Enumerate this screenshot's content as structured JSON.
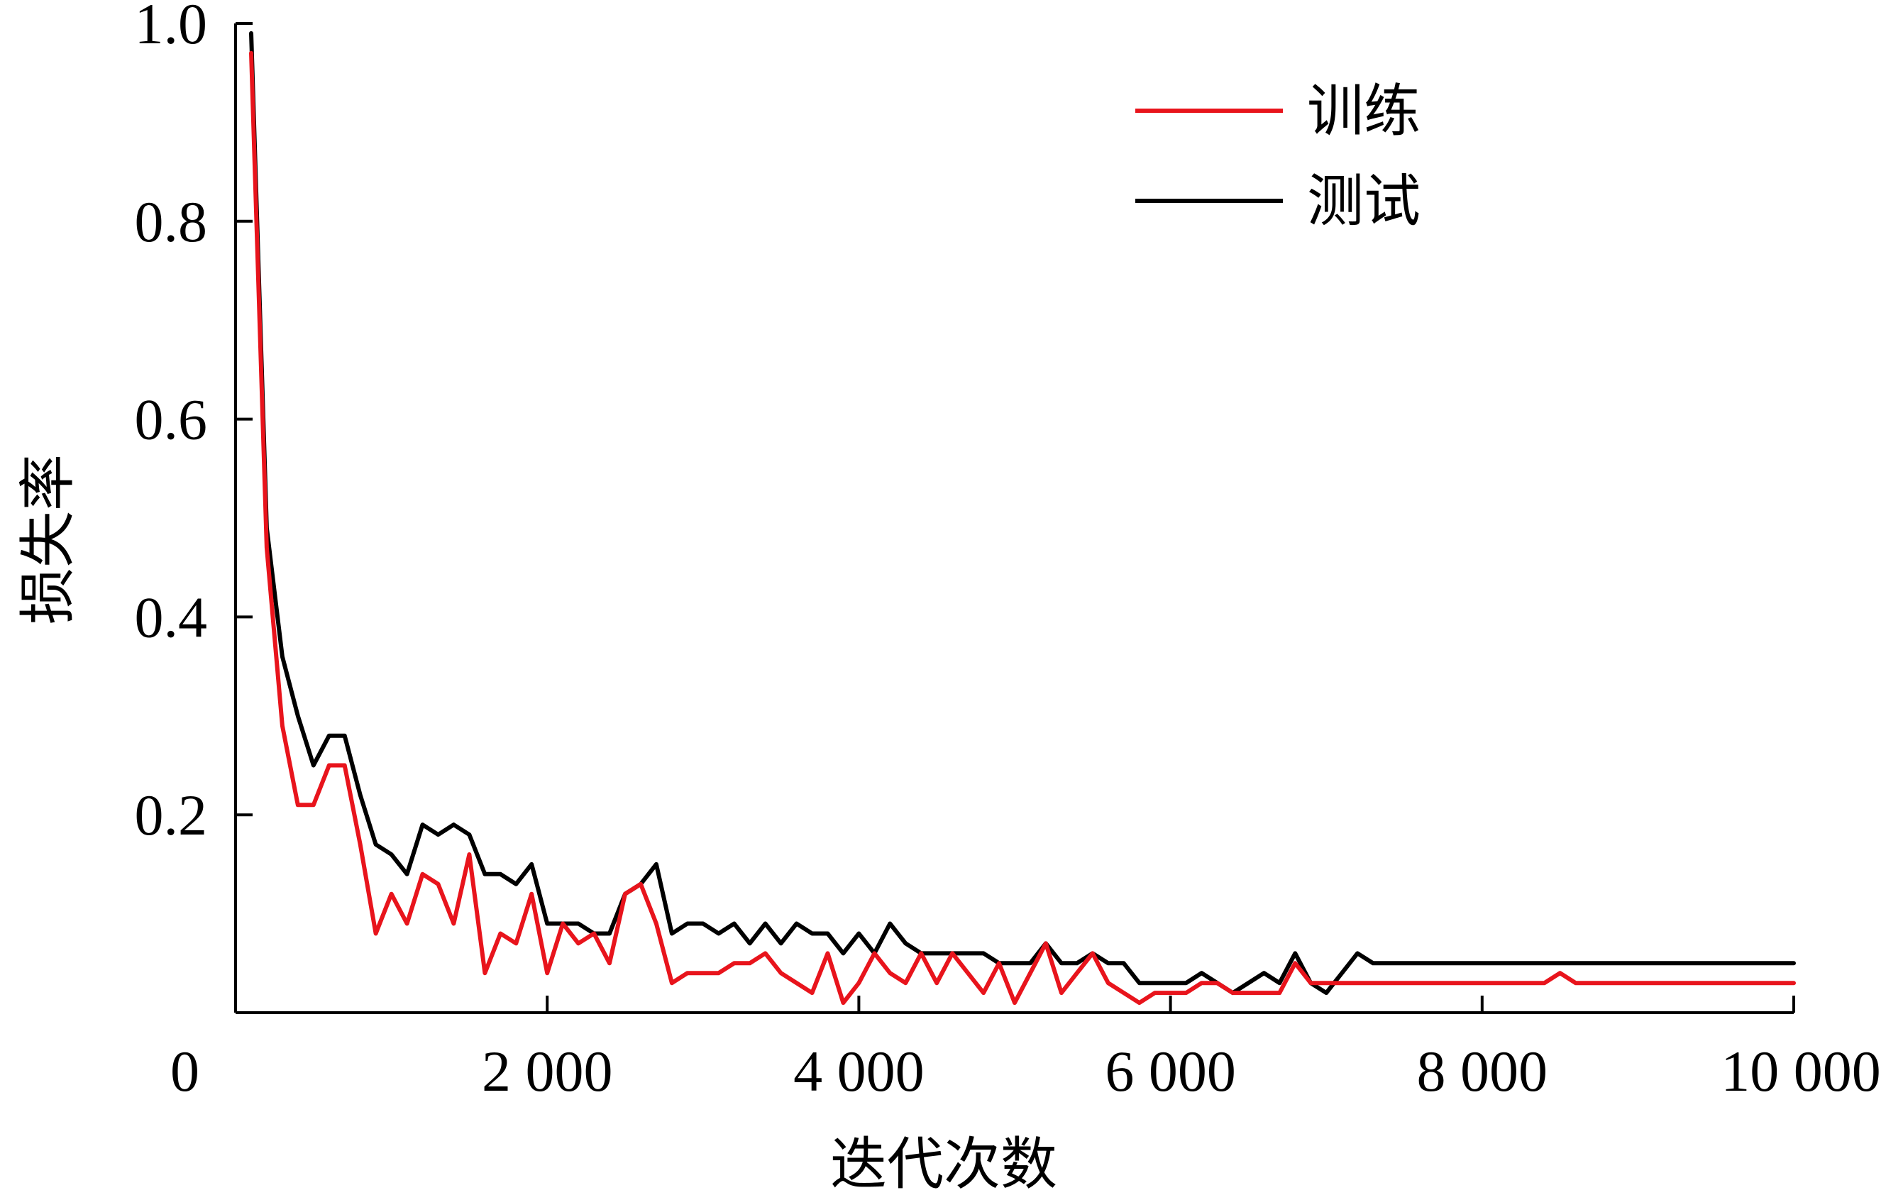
{
  "chart_data": {
    "type": "line",
    "title": "",
    "xlabel": "迭代次数",
    "ylabel": "损失率",
    "xlim": [
      0,
      10000
    ],
    "ylim": [
      0,
      1.0
    ],
    "xticks": [
      0,
      2000,
      4000,
      6000,
      8000,
      10000
    ],
    "xtick_labels": [
      "0",
      "2 000",
      "4 000",
      "6 000",
      "8 000",
      "10 000"
    ],
    "yticks": [
      0.2,
      0.4,
      0.6,
      0.8,
      1.0
    ],
    "ytick_labels": [
      "0.2",
      "0.4",
      "0.6",
      "0.8",
      "1.0"
    ],
    "grid": false,
    "legend_position": "top-right",
    "colors": {
      "train": "#e8141c",
      "test": "#000000"
    },
    "series": [
      {
        "name": "训练",
        "color": "#e8141c",
        "x": [
          100,
          200,
          300,
          400,
          500,
          600,
          700,
          800,
          900,
          1000,
          1100,
          1200,
          1300,
          1400,
          1500,
          1600,
          1700,
          1800,
          1900,
          2000,
          2100,
          2200,
          2300,
          2400,
          2500,
          2600,
          2700,
          2800,
          2900,
          3000,
          3100,
          3200,
          3300,
          3400,
          3500,
          3600,
          3700,
          3800,
          3900,
          4000,
          4100,
          4200,
          4300,
          4400,
          4500,
          4600,
          4700,
          4800,
          4900,
          5000,
          5100,
          5200,
          5300,
          5400,
          5500,
          5600,
          5700,
          5800,
          5900,
          6000,
          6100,
          6200,
          6300,
          6400,
          6500,
          6600,
          6700,
          6800,
          6900,
          7000,
          7100,
          7200,
          7300,
          7400,
          7500,
          7600,
          7700,
          7800,
          7900,
          8000,
          8100,
          8200,
          8300,
          8400,
          8500,
          8600,
          8700,
          8800,
          8900,
          9000,
          9100,
          9200,
          9300,
          9400,
          9500,
          9600,
          9700,
          9800,
          9900,
          10000
        ],
        "values": [
          0.97,
          0.47,
          0.29,
          0.21,
          0.21,
          0.25,
          0.25,
          0.17,
          0.08,
          0.12,
          0.09,
          0.14,
          0.13,
          0.09,
          0.16,
          0.04,
          0.08,
          0.07,
          0.12,
          0.04,
          0.09,
          0.07,
          0.08,
          0.05,
          0.12,
          0.13,
          0.09,
          0.03,
          0.04,
          0.04,
          0.04,
          0.05,
          0.05,
          0.06,
          0.04,
          0.03,
          0.02,
          0.06,
          0.01,
          0.03,
          0.06,
          0.04,
          0.03,
          0.06,
          0.03,
          0.06,
          0.04,
          0.02,
          0.05,
          0.01,
          0.04,
          0.07,
          0.02,
          0.04,
          0.06,
          0.03,
          0.02,
          0.01,
          0.02,
          0.02,
          0.02,
          0.03,
          0.03,
          0.02,
          0.02,
          0.02,
          0.02,
          0.05,
          0.03,
          0.03,
          0.03,
          0.03,
          0.03,
          0.03,
          0.03,
          0.03,
          0.03,
          0.03,
          0.03,
          0.03,
          0.03,
          0.03,
          0.03,
          0.03,
          0.04,
          0.03,
          0.03,
          0.03,
          0.03,
          0.03,
          0.03,
          0.03,
          0.03,
          0.03,
          0.03,
          0.03,
          0.03,
          0.03,
          0.03,
          0.03
        ]
      },
      {
        "name": "测试",
        "color": "#000000",
        "x": [
          100,
          200,
          300,
          400,
          500,
          600,
          700,
          800,
          900,
          1000,
          1100,
          1200,
          1300,
          1400,
          1500,
          1600,
          1700,
          1800,
          1900,
          2000,
          2100,
          2200,
          2300,
          2400,
          2500,
          2600,
          2700,
          2800,
          2900,
          3000,
          3100,
          3200,
          3300,
          3400,
          3500,
          3600,
          3700,
          3800,
          3900,
          4000,
          4100,
          4200,
          4300,
          4400,
          4500,
          4600,
          4700,
          4800,
          4900,
          5000,
          5100,
          5200,
          5300,
          5400,
          5500,
          5600,
          5700,
          5800,
          5900,
          6000,
          6100,
          6200,
          6300,
          6400,
          6500,
          6600,
          6700,
          6800,
          6900,
          7000,
          7100,
          7200,
          7300,
          7400,
          7500,
          7600,
          7700,
          7800,
          7900,
          8000,
          8100,
          8200,
          8300,
          8400,
          8500,
          8600,
          8700,
          8800,
          8900,
          9000,
          9100,
          9200,
          9300,
          9400,
          9500,
          9600,
          9700,
          9800,
          9900,
          10000
        ],
        "values": [
          0.99,
          0.49,
          0.36,
          0.3,
          0.25,
          0.28,
          0.28,
          0.22,
          0.17,
          0.16,
          0.14,
          0.19,
          0.18,
          0.19,
          0.18,
          0.14,
          0.14,
          0.13,
          0.15,
          0.09,
          0.09,
          0.09,
          0.08,
          0.08,
          0.12,
          0.13,
          0.15,
          0.08,
          0.09,
          0.09,
          0.08,
          0.09,
          0.07,
          0.09,
          0.07,
          0.09,
          0.08,
          0.08,
          0.06,
          0.08,
          0.06,
          0.09,
          0.07,
          0.06,
          0.06,
          0.06,
          0.06,
          0.06,
          0.05,
          0.05,
          0.05,
          0.07,
          0.05,
          0.05,
          0.06,
          0.05,
          0.05,
          0.03,
          0.03,
          0.03,
          0.03,
          0.04,
          0.03,
          0.02,
          0.03,
          0.04,
          0.03,
          0.06,
          0.03,
          0.02,
          0.04,
          0.06,
          0.05,
          0.05,
          0.05,
          0.05,
          0.05,
          0.05,
          0.05,
          0.05,
          0.05,
          0.05,
          0.05,
          0.05,
          0.05,
          0.05,
          0.05,
          0.05,
          0.05,
          0.05,
          0.05,
          0.05,
          0.05,
          0.05,
          0.05,
          0.05,
          0.05,
          0.05,
          0.05,
          0.05
        ]
      }
    ]
  }
}
